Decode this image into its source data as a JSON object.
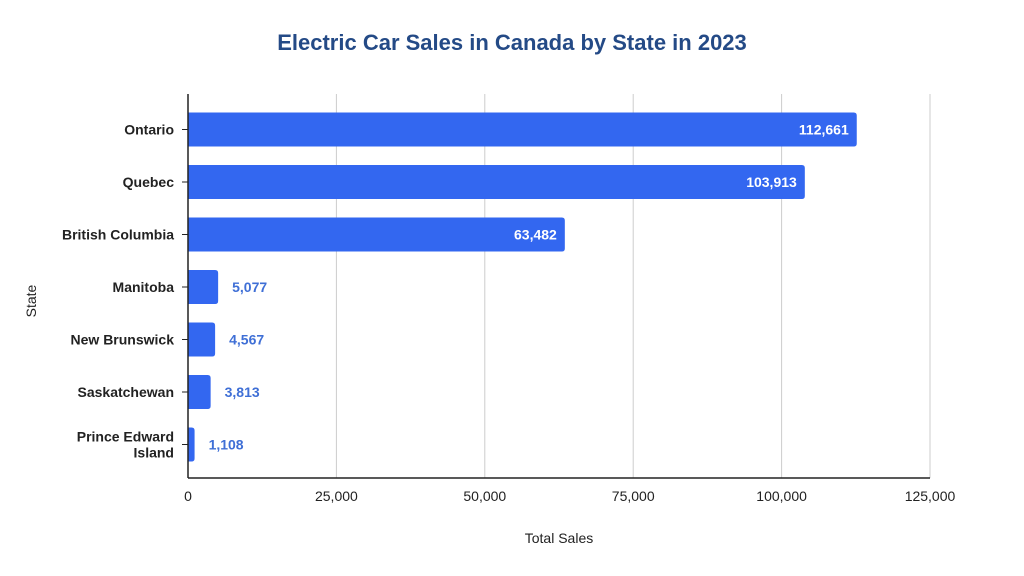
{
  "chart_data": {
    "type": "bar",
    "orientation": "horizontal",
    "title": "Electric Car Sales in Canada by State in 2023",
    "xlabel": "Total Sales",
    "ylabel": "State",
    "categories": [
      "Ontario",
      "Quebec",
      "British Columbia",
      "Manitoba",
      "New Brunswick",
      "Saskatchewan",
      "Prince Edward Island"
    ],
    "category_display": [
      [
        "Ontario"
      ],
      [
        "Quebec"
      ],
      [
        "British Columbia"
      ],
      [
        "Manitoba"
      ],
      [
        "New Brunswick"
      ],
      [
        "Saskatchewan"
      ],
      [
        "Prince Edward",
        "Island"
      ]
    ],
    "values": [
      112661,
      103913,
      63482,
      5077,
      4567,
      3813,
      1108
    ],
    "data_labels": [
      "112,661",
      "103,913",
      "63,482",
      "5,077",
      "4,567",
      "3,813",
      "1,108"
    ],
    "xlim": [
      0,
      125000
    ],
    "xticks": [
      0,
      25000,
      50000,
      75000,
      100000,
      125000
    ],
    "xtick_labels": [
      "0",
      "25,000",
      "50,000",
      "75,000",
      "100,000",
      "125,000"
    ],
    "grid": true,
    "legend": "none",
    "colors": {
      "bar": "#3367f0",
      "title": "#244a86",
      "label_inside": "#ffffff",
      "label_outside": "#3f6fd6",
      "axis": "#222222",
      "grid": "#cccccc",
      "text": "#222222"
    }
  }
}
